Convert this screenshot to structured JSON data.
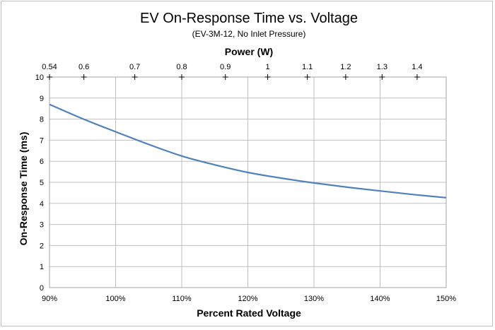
{
  "chart_data": {
    "type": "line",
    "title": "EV On-Response Time vs. Voltage",
    "subtitle": "(EV-3M-12, No Inlet Pressure)",
    "xlabel": "Percent Rated Voltage",
    "ylabel": "On-Response Time (ms)",
    "top_axis_label": "Power (W)",
    "x_ticks": [
      "90%",
      "100%",
      "110%",
      "120%",
      "130%",
      "140%",
      "150%"
    ],
    "xlim": [
      90,
      150
    ],
    "y_ticks": [
      "0",
      "1",
      "2",
      "3",
      "4",
      "5",
      "6",
      "7",
      "8",
      "9",
      "10"
    ],
    "ylim": [
      0,
      10
    ],
    "top_ticks": [
      {
        "label": "0.54",
        "x": 90
      },
      {
        "label": "0.6",
        "x": 95.2
      },
      {
        "label": "0.7",
        "x": 102.9
      },
      {
        "label": "0.8",
        "x": 110
      },
      {
        "label": "0.9",
        "x": 116.6
      },
      {
        "label": "1",
        "x": 123
      },
      {
        "label": "1.1",
        "x": 129
      },
      {
        "label": "1.2",
        "x": 134.8
      },
      {
        "label": "1.3",
        "x": 140.3
      },
      {
        "label": "1.4",
        "x": 145.6
      }
    ],
    "grid": true,
    "series": [
      {
        "color": "#4f81bd",
        "x": [
          90,
          95,
          100,
          105,
          110,
          115,
          120,
          125,
          130,
          135,
          140,
          145,
          150
        ],
        "y": [
          8.7,
          8.02,
          7.4,
          6.8,
          6.25,
          5.83,
          5.47,
          5.2,
          4.97,
          4.77,
          4.59,
          4.42,
          4.27
        ]
      }
    ]
  }
}
